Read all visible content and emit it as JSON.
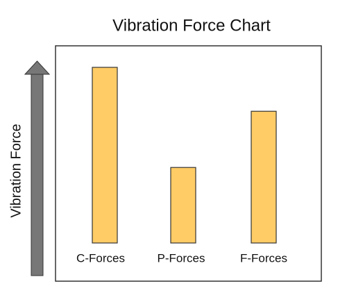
{
  "chart_data": {
    "type": "bar",
    "title": "Vibration Force Chart",
    "y_label": "Vibration Force",
    "categories": [
      "C-Forces",
      "P-Forces",
      "F-Forces"
    ],
    "values": [
      100,
      43,
      75
    ],
    "color": "#ffcc66"
  }
}
